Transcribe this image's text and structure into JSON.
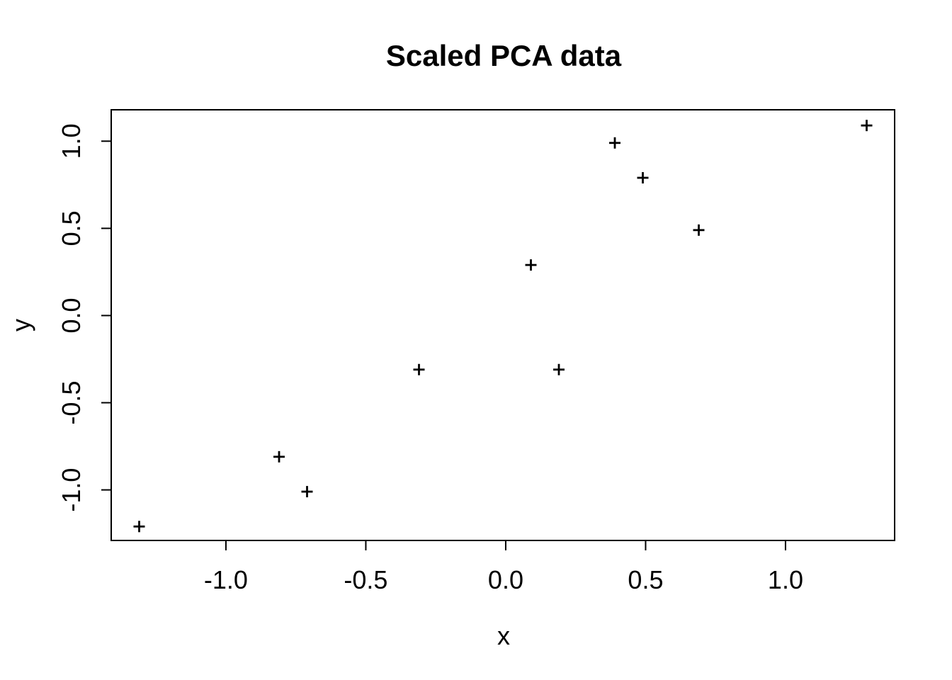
{
  "chart_data": {
    "type": "scatter",
    "title": "Scaled PCA data",
    "xlabel": "x",
    "ylabel": "y",
    "marker": "+",
    "grid": false,
    "foreground_color": "#000000",
    "background_color": "#ffffff",
    "xlim": [
      -1.41,
      1.39
    ],
    "ylim": [
      -1.29,
      1.18
    ],
    "xtick_values": [
      -1.0,
      -0.5,
      0.0,
      0.5,
      1.0
    ],
    "xtick_labels": [
      "-1.0",
      "-0.5",
      "0.0",
      "0.5",
      "1.0"
    ],
    "ytick_values": [
      -1.0,
      -0.5,
      0.0,
      0.5,
      1.0
    ],
    "ytick_labels": [
      "-1.0",
      "-0.5",
      "0.0",
      "0.5",
      "1.0"
    ],
    "points": [
      {
        "x": 0.69,
        "y": 0.49
      },
      {
        "x": -1.31,
        "y": -1.21
      },
      {
        "x": 0.39,
        "y": 0.99
      },
      {
        "x": 0.09,
        "y": 0.29
      },
      {
        "x": 1.29,
        "y": 1.09
      },
      {
        "x": 0.49,
        "y": 0.79
      },
      {
        "x": 0.19,
        "y": -0.31
      },
      {
        "x": -0.81,
        "y": -0.81
      },
      {
        "x": -0.31,
        "y": -0.31
      },
      {
        "x": -0.71,
        "y": -1.01
      }
    ]
  }
}
